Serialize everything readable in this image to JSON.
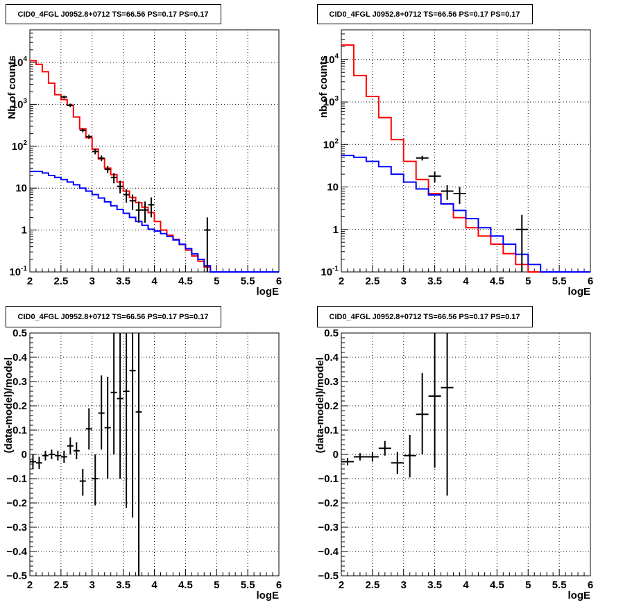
{
  "chart_data": [
    {
      "type": "histogram",
      "title": "CID0_4FGL J0952.8+0712 TS=66.56 PS=0.17 PS=0.17",
      "xlabel": "logE",
      "ylabel": "Nb of counts",
      "xlim": [
        2,
        6
      ],
      "ylim": [
        0.1,
        60000
      ],
      "yscale": "log",
      "grid": true,
      "xticks": [
        "2",
        "2.5",
        "3",
        "3.5",
        "4",
        "4.5",
        "5",
        "5.5",
        "6"
      ],
      "yticks": [
        {
          "value": 0.1,
          "base": "10",
          "exp": "-1"
        },
        {
          "value": 1,
          "label": "1"
        },
        {
          "value": 10,
          "label": "10"
        },
        {
          "value": 100,
          "base": "10",
          "exp": "2"
        },
        {
          "value": 1000,
          "base": "10",
          "exp": "3"
        },
        {
          "value": 10000,
          "base": "10",
          "exp": "4"
        }
      ],
      "bin_edges": [
        2.0,
        2.1,
        2.2,
        2.3,
        2.4,
        2.5,
        2.6,
        2.7,
        2.8,
        2.9,
        3.0,
        3.1,
        3.2,
        3.3,
        3.4,
        3.5,
        3.6,
        3.7,
        3.8,
        3.9,
        4.0,
        4.1,
        4.2,
        4.3,
        4.4,
        4.5,
        4.6,
        4.7,
        4.8,
        4.9,
        5.0,
        5.1,
        5.2,
        5.3,
        5.4,
        5.5,
        5.6,
        5.7,
        5.8,
        5.9,
        6.0
      ],
      "series": [
        {
          "color": "#ff0000",
          "style": "step",
          "values": [
            11000,
            9000,
            6000,
            3200,
            1700,
            1300,
            950,
            500,
            260,
            160,
            85,
            50,
            30,
            21,
            14,
            8.5,
            6,
            4.5,
            3.5,
            2.6,
            1.6,
            1.0,
            0.75,
            0.6,
            0.45,
            0.33,
            0.24,
            0.18,
            0.13,
            0.1,
            0.1,
            0.1,
            0.1,
            0.1,
            0.1,
            0.1,
            0.1,
            0.1,
            0.1,
            0.1
          ]
        },
        {
          "color": "#0000ff",
          "style": "step",
          "values": [
            25,
            25,
            23,
            20,
            18,
            16,
            14,
            12,
            10,
            8.5,
            7,
            5.8,
            4.7,
            3.8,
            3.1,
            2.5,
            2,
            1.6,
            1.3,
            1.05,
            0.95,
            0.82,
            0.7,
            0.58,
            0.46,
            0.36,
            0.27,
            0.2,
            0.14,
            0.1,
            0.1,
            0.1,
            0.1,
            0.1,
            0.1,
            0.1,
            0.1,
            0.1,
            0.1,
            0.1
          ]
        }
      ],
      "points": [
        {
          "x": 2.55,
          "y": 1500,
          "xerr": 0.05,
          "ylo": 1380,
          "yhi": 1620
        },
        {
          "x": 2.65,
          "y": 950,
          "xerr": 0.05,
          "ylo": 860,
          "yhi": 1040
        },
        {
          "x": 2.85,
          "y": 240,
          "xerr": 0.05,
          "ylo": 215,
          "yhi": 265
        },
        {
          "x": 2.95,
          "y": 170,
          "xerr": 0.05,
          "ylo": 150,
          "yhi": 190
        },
        {
          "x": 3.05,
          "y": 75,
          "xerr": 0.05,
          "ylo": 64,
          "yhi": 86
        },
        {
          "x": 3.15,
          "y": 52,
          "xerr": 0.05,
          "ylo": 44,
          "yhi": 60
        },
        {
          "x": 3.25,
          "y": 28,
          "xerr": 0.05,
          "ylo": 23,
          "yhi": 34
        },
        {
          "x": 3.35,
          "y": 18,
          "xerr": 0.05,
          "ylo": 13,
          "yhi": 23
        },
        {
          "x": 3.45,
          "y": 11,
          "xerr": 0.05,
          "ylo": 7.5,
          "yhi": 15
        },
        {
          "x": 3.55,
          "y": 7,
          "xerr": 0.05,
          "ylo": 4.5,
          "yhi": 9.5
        },
        {
          "x": 3.65,
          "y": 5,
          "xerr": 0.05,
          "ylo": 3,
          "yhi": 7
        },
        {
          "x": 3.75,
          "y": 3,
          "xerr": 0.05,
          "ylo": 1.5,
          "yhi": 4.8
        },
        {
          "x": 3.85,
          "y": 3,
          "xerr": 0.05,
          "ylo": 1.5,
          "yhi": 4.8
        },
        {
          "x": 3.95,
          "y": 4,
          "xerr": 0.05,
          "ylo": 2,
          "yhi": 6
        },
        {
          "x": 4.85,
          "y": 1,
          "xerr": 0.05,
          "ylo": 0.1,
          "yhi": 2
        }
      ]
    },
    {
      "type": "histogram",
      "title": "CID0_4FGL J0952.8+0712 TS=66.56 PS=0.17 PS=0.17",
      "xlabel": "logE",
      "ylabel": "nb of counts",
      "xlim": [
        2,
        6
      ],
      "ylim": [
        0.1,
        50000
      ],
      "yscale": "log",
      "grid": true,
      "xticks": [
        "2",
        "2.5",
        "3",
        "3.5",
        "4",
        "4.5",
        "5",
        "5.5",
        "6"
      ],
      "yticks": [
        {
          "value": 0.1,
          "base": "10",
          "exp": "-1"
        },
        {
          "value": 1,
          "label": "1"
        },
        {
          "value": 10,
          "label": "10"
        },
        {
          "value": 100,
          "base": "10",
          "exp": "2"
        },
        {
          "value": 1000,
          "base": "10",
          "exp": "3"
        },
        {
          "value": 10000,
          "base": "10",
          "exp": "4"
        }
      ],
      "bin_edges": [
        2.0,
        2.2,
        2.4,
        2.6,
        2.8,
        3.0,
        3.2,
        3.4,
        3.6,
        3.8,
        4.0,
        4.2,
        4.4,
        4.6,
        4.8,
        5.0,
        5.2,
        5.4,
        5.6,
        5.8,
        6.0
      ],
      "series": [
        {
          "color": "#ff0000",
          "style": "step",
          "values": [
            22000,
            4200,
            1350,
            430,
            130,
            40,
            15,
            7,
            4,
            1.9,
            1.1,
            0.7,
            0.45,
            0.27,
            0.15,
            0.1,
            0.1,
            0.1,
            0.1,
            0.1
          ]
        },
        {
          "color": "#0000ff",
          "style": "step",
          "values": [
            55,
            50,
            40,
            30,
            20,
            13,
            9,
            6.5,
            4,
            2.8,
            1.8,
            1.1,
            0.7,
            0.45,
            0.26,
            0.15,
            0.1,
            0.1,
            0.1,
            0.1
          ]
        }
      ],
      "points": [
        {
          "x": 3.3,
          "y": 48,
          "xerr": 0.1,
          "ylo": 42,
          "yhi": 54
        },
        {
          "x": 3.5,
          "y": 18,
          "xerr": 0.1,
          "ylo": 13,
          "yhi": 23
        },
        {
          "x": 3.7,
          "y": 8,
          "xerr": 0.1,
          "ylo": 5,
          "yhi": 11
        },
        {
          "x": 3.9,
          "y": 7,
          "xerr": 0.1,
          "ylo": 4,
          "yhi": 10
        },
        {
          "x": 4.9,
          "y": 1,
          "xerr": 0.1,
          "ylo": 0.1,
          "yhi": 2.2
        }
      ]
    },
    {
      "type": "scatter",
      "title": "CID0_4FGL J0952.8+0712 TS=66.56 PS=0.17 PS=0.17",
      "xlabel": "logE",
      "ylabel": "(data-model)/model",
      "xlim": [
        2,
        6
      ],
      "ylim": [
        -0.5,
        0.5
      ],
      "yscale": "linear",
      "grid": true,
      "xticks": [
        "2",
        "2.5",
        "3",
        "3.5",
        "4",
        "4.5",
        "5",
        "5.5",
        "6"
      ],
      "ytick_labels": [
        "−0.5",
        "−0.4",
        "−0.3",
        "−0.2",
        "−0.1",
        "0",
        "0.1",
        "0.2",
        "0.3",
        "0.4",
        "0.5"
      ],
      "points": [
        {
          "x": 2.05,
          "y": -0.03,
          "xerr": 0.05,
          "ylo": -0.06,
          "yhi": 0.0
        },
        {
          "x": 2.15,
          "y": -0.035,
          "xerr": 0.05,
          "ylo": -0.06,
          "yhi": -0.01
        },
        {
          "x": 2.25,
          "y": -0.005,
          "xerr": 0.05,
          "ylo": -0.025,
          "yhi": 0.015
        },
        {
          "x": 2.35,
          "y": 0.0,
          "xerr": 0.05,
          "ylo": -0.02,
          "yhi": 0.02
        },
        {
          "x": 2.45,
          "y": -0.005,
          "xerr": 0.05,
          "ylo": -0.025,
          "yhi": 0.015
        },
        {
          "x": 2.55,
          "y": -0.01,
          "xerr": 0.05,
          "ylo": -0.035,
          "yhi": 0.015
        },
        {
          "x": 2.65,
          "y": 0.035,
          "xerr": 0.05,
          "ylo": 0.0,
          "yhi": 0.07
        },
        {
          "x": 2.75,
          "y": 0.015,
          "xerr": 0.05,
          "ylo": -0.02,
          "yhi": 0.05
        },
        {
          "x": 2.85,
          "y": -0.11,
          "xerr": 0.05,
          "ylo": -0.17,
          "yhi": -0.06
        },
        {
          "x": 2.95,
          "y": 0.105,
          "xerr": 0.05,
          "ylo": 0.02,
          "yhi": 0.19
        },
        {
          "x": 3.05,
          "y": -0.1,
          "xerr": 0.05,
          "ylo": -0.21,
          "yhi": -0.0
        },
        {
          "x": 3.15,
          "y": 0.17,
          "xerr": 0.05,
          "ylo": 0.02,
          "yhi": 0.325
        },
        {
          "x": 3.25,
          "y": 0.11,
          "xerr": 0.05,
          "ylo": -0.1,
          "yhi": 0.32
        },
        {
          "x": 3.35,
          "y": 0.255,
          "xerr": 0.05,
          "ylo": 0.0,
          "yhi": 0.5
        },
        {
          "x": 3.45,
          "y": 0.23,
          "xerr": 0.05,
          "ylo": -0.1,
          "yhi": 0.5
        },
        {
          "x": 3.55,
          "y": 0.26,
          "xerr": 0.05,
          "ylo": -0.22,
          "yhi": 0.5
        },
        {
          "x": 3.65,
          "y": 0.345,
          "xerr": 0.05,
          "ylo": -0.26,
          "yhi": 0.5
        },
        {
          "x": 3.75,
          "y": 0.175,
          "xerr": 0.05,
          "ylo": -0.5,
          "yhi": 0.5
        }
      ]
    },
    {
      "type": "scatter",
      "title": "CID0_4FGL J0952.8+0712 TS=66.56 PS=0.17 PS=0.17",
      "xlabel": "logE",
      "ylabel": "(data-model)/model",
      "xlim": [
        2,
        6
      ],
      "ylim": [
        -0.5,
        0.5
      ],
      "yscale": "linear",
      "grid": true,
      "xticks": [
        "2",
        "2.5",
        "3",
        "3.5",
        "4",
        "4.5",
        "5",
        "5.5",
        "6"
      ],
      "ytick_labels": [
        "−0.5",
        "−0.4",
        "−0.3",
        "−0.2",
        "−0.1",
        "0",
        "0.1",
        "0.2",
        "0.3",
        "0.4",
        "0.5"
      ],
      "points": [
        {
          "x": 2.1,
          "y": -0.03,
          "xerr": 0.1,
          "ylo": -0.045,
          "yhi": -0.015
        },
        {
          "x": 2.3,
          "y": -0.01,
          "xerr": 0.1,
          "ylo": -0.025,
          "yhi": 0.005
        },
        {
          "x": 2.5,
          "y": -0.01,
          "xerr": 0.1,
          "ylo": -0.03,
          "yhi": 0.01
        },
        {
          "x": 2.7,
          "y": 0.025,
          "xerr": 0.1,
          "ylo": -0.005,
          "yhi": 0.055
        },
        {
          "x": 2.9,
          "y": -0.035,
          "xerr": 0.1,
          "ylo": -0.08,
          "yhi": 0.01
        },
        {
          "x": 3.1,
          "y": -0.005,
          "xerr": 0.1,
          "ylo": -0.095,
          "yhi": 0.08
        },
        {
          "x": 3.3,
          "y": 0.165,
          "xerr": 0.1,
          "ylo": 0.0,
          "yhi": 0.335
        },
        {
          "x": 3.5,
          "y": 0.24,
          "xerr": 0.1,
          "ylo": -0.055,
          "yhi": 0.5
        },
        {
          "x": 3.7,
          "y": 0.275,
          "xerr": 0.1,
          "ylo": -0.17,
          "yhi": 0.5
        }
      ]
    }
  ]
}
